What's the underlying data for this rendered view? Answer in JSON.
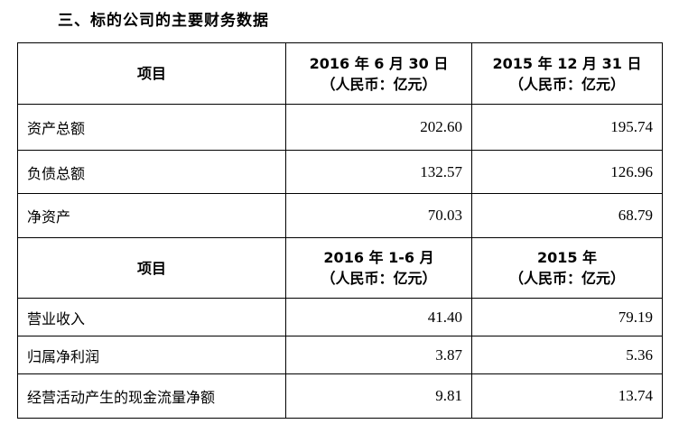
{
  "title": "三、标的公司的主要财务数据",
  "table1": {
    "headers": [
      "项目",
      "2016 年 6 月 30 日",
      "2015 年 12 月 31 日"
    ],
    "unit": "（人民币：亿元）",
    "rows": [
      {
        "label": "资产总额",
        "v1": "202.60",
        "v2": "195.74"
      },
      {
        "label": "负债总额",
        "v1": "132.57",
        "v2": "126.96"
      },
      {
        "label": "净资产",
        "v1": "70.03",
        "v2": "68.79"
      }
    ]
  },
  "table2": {
    "headers": [
      "项目",
      "2016 年 1-6 月",
      "2015 年"
    ],
    "unit": "（人民币：亿元）",
    "rows": [
      {
        "label": "营业收入",
        "v1": "41.40",
        "v2": "79.19"
      },
      {
        "label": "归属净利润",
        "v1": "3.87",
        "v2": "5.36"
      },
      {
        "label": "经营活动产生的现金流量净额",
        "v1": "9.81",
        "v2": "13.74"
      }
    ]
  }
}
